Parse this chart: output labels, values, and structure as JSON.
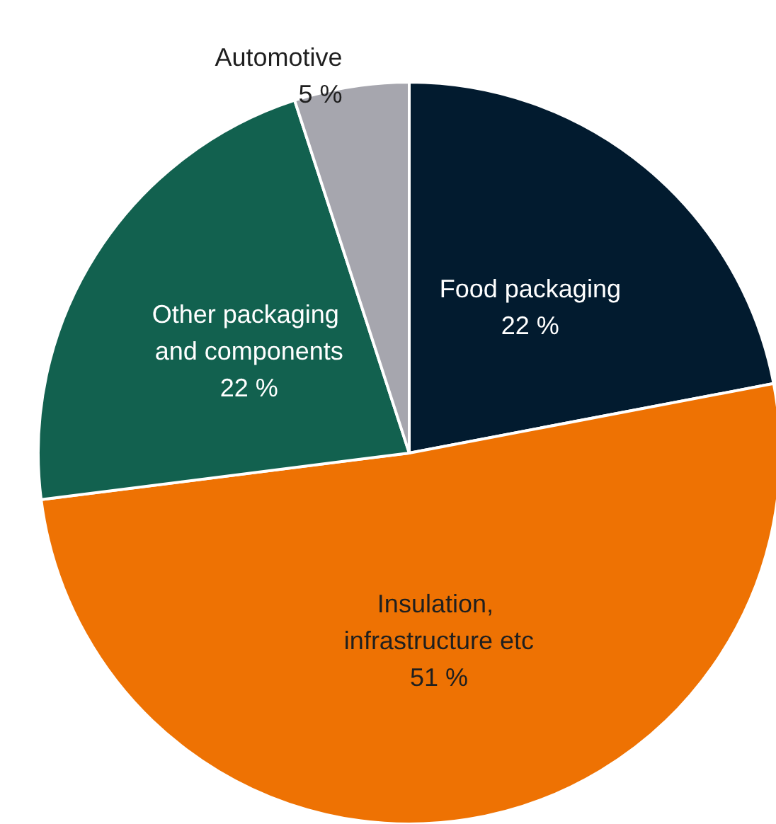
{
  "chart_data": {
    "type": "pie",
    "categories": [
      "Food packaging",
      "Insulation, infrastructure etc",
      "Other packaging and components",
      "Automotive"
    ],
    "values": [
      22,
      51,
      22,
      5
    ],
    "value_labels": [
      "22 %",
      "51 %",
      "22 %",
      "5 %"
    ],
    "colors": [
      "#021b2f",
      "#ee7203",
      "#12614f",
      "#a6a6ae"
    ],
    "legend": false
  }
}
